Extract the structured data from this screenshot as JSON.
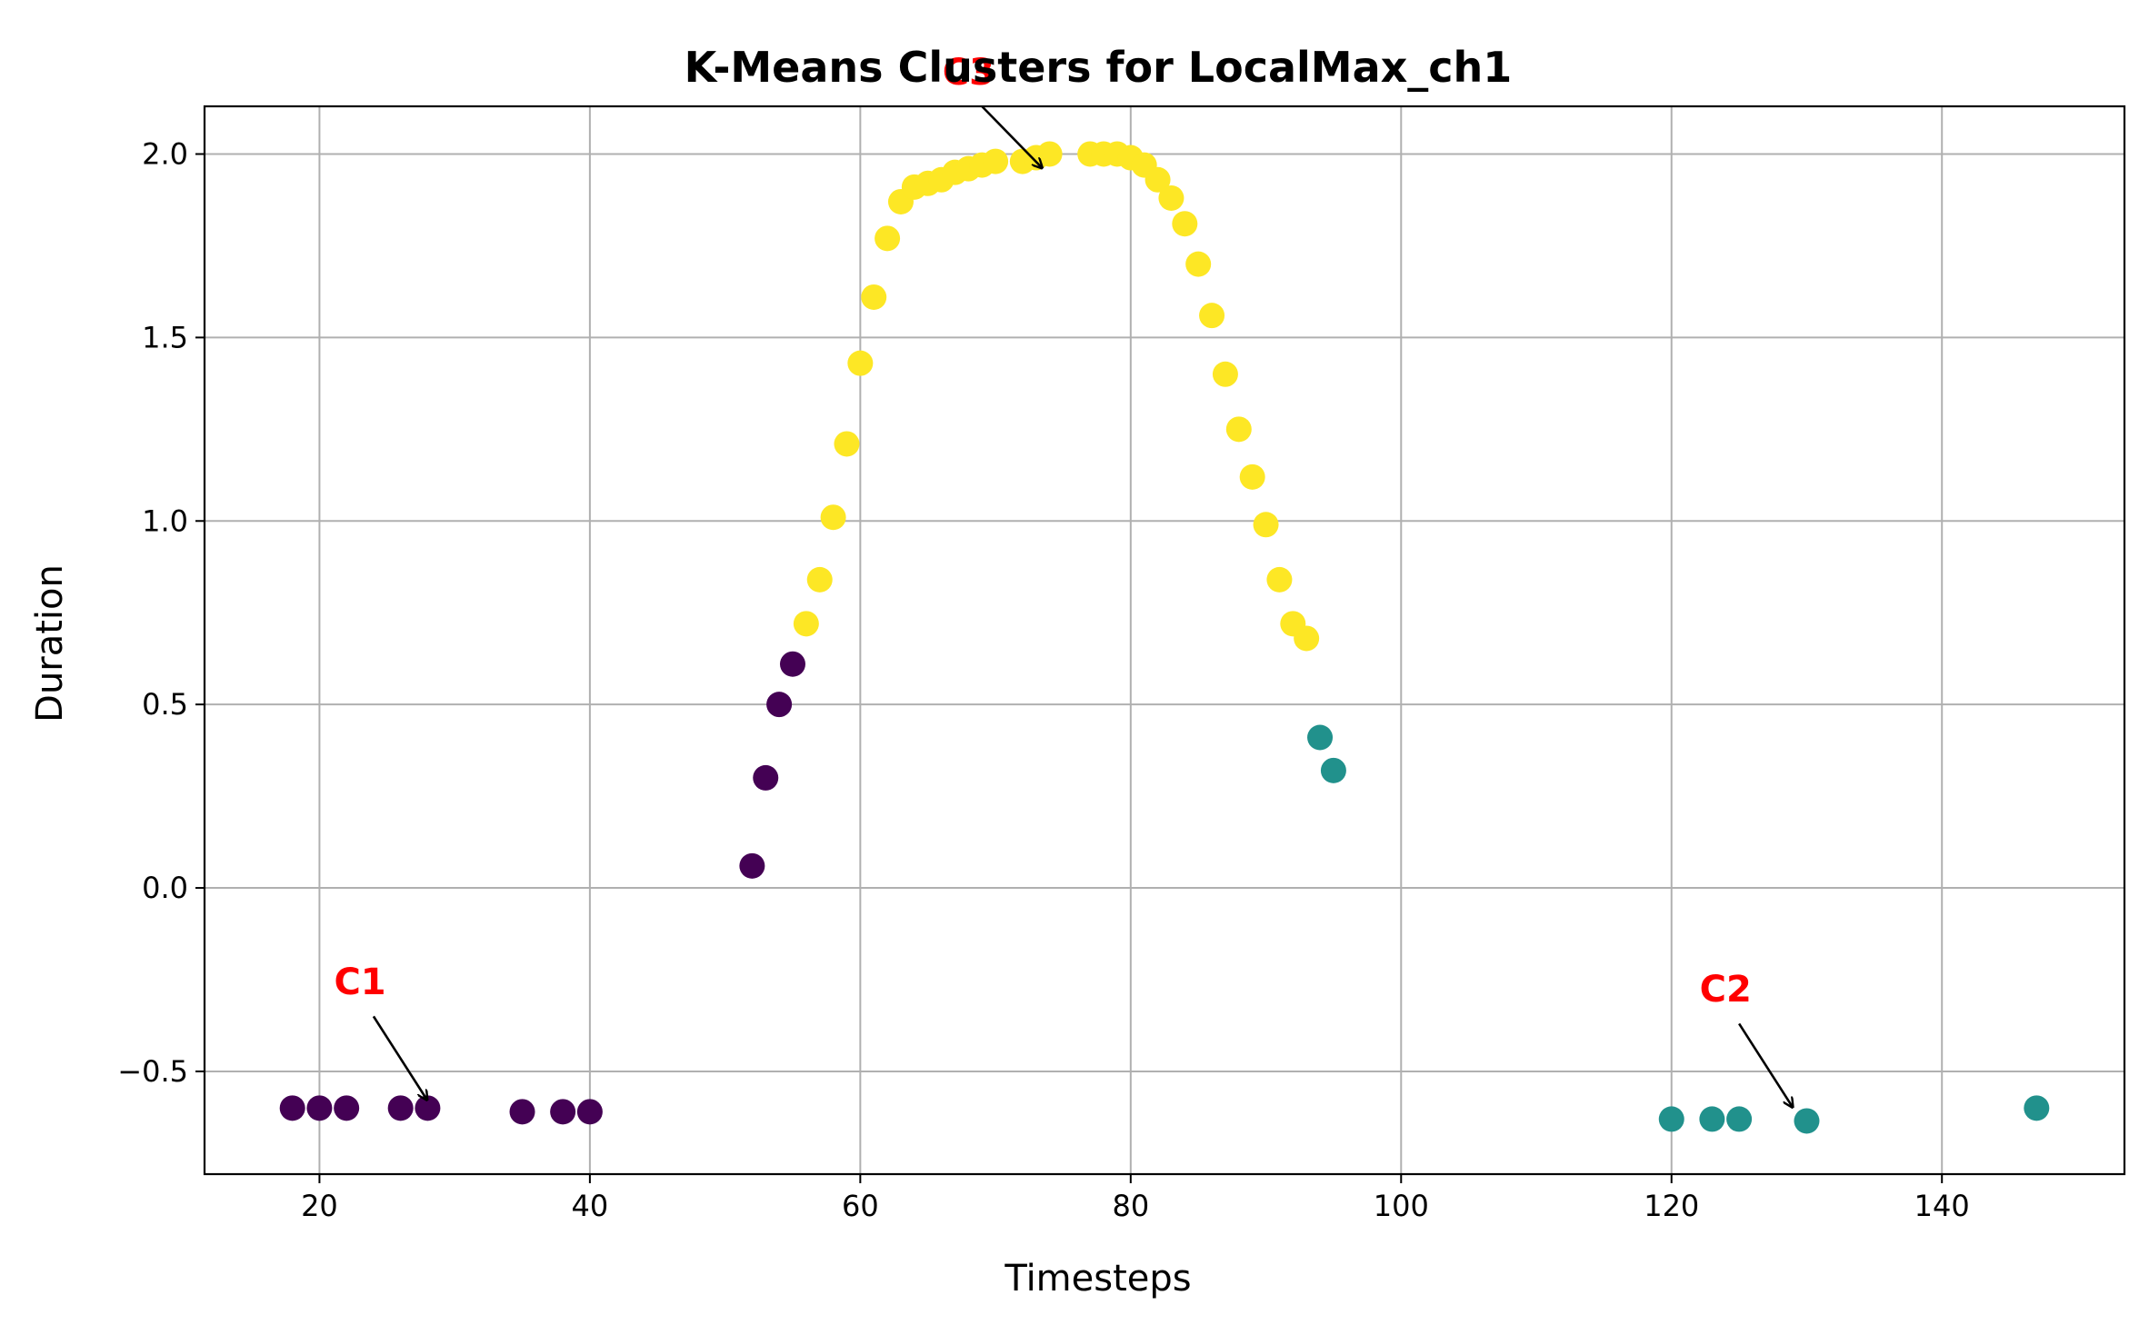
{
  "chart_data": {
    "type": "scatter",
    "title": "K-Means Clusters for LocalMax_ch1",
    "xlabel": "Timesteps",
    "ylabel": "Duration",
    "xlim": [
      11.5,
      153.5
    ],
    "ylim": [
      -0.78,
      2.13
    ],
    "xticks": [
      20,
      40,
      60,
      80,
      100,
      120,
      140
    ],
    "yticks": [
      -0.5,
      0.0,
      0.5,
      1.0,
      1.5,
      2.0
    ],
    "xtick_labels": [
      "20",
      "40",
      "60",
      "80",
      "100",
      "120",
      "140"
    ],
    "ytick_labels": [
      "−0.5",
      "0.0",
      "0.5",
      "1.0",
      "1.5",
      "2.0"
    ],
    "grid": true,
    "legend": "none",
    "colors": {
      "c1": "#440154",
      "c2": "#21918c",
      "c3": "#fde725",
      "annotation": "#ff0000"
    },
    "clusters": [
      {
        "color_key": "c1",
        "points": [
          [
            18,
            -0.6
          ],
          [
            20,
            -0.6
          ],
          [
            22,
            -0.6
          ],
          [
            26,
            -0.6
          ],
          [
            28,
            -0.6
          ],
          [
            35,
            -0.61
          ],
          [
            38,
            -0.61
          ],
          [
            40,
            -0.61
          ],
          [
            52,
            0.06
          ],
          [
            53,
            0.3
          ],
          [
            54,
            0.5
          ],
          [
            55,
            0.61
          ]
        ]
      },
      {
        "color_key": "c2",
        "points": [
          [
            94,
            0.41
          ],
          [
            95,
            0.32
          ],
          [
            120,
            -0.63
          ],
          [
            123,
            -0.63
          ],
          [
            125,
            -0.63
          ],
          [
            130,
            -0.635
          ],
          [
            147,
            -0.6
          ]
        ]
      },
      {
        "color_key": "c3",
        "points": [
          [
            56,
            0.72
          ],
          [
            57,
            0.84
          ],
          [
            58,
            1.01
          ],
          [
            59,
            1.21
          ],
          [
            60,
            1.43
          ],
          [
            61,
            1.61
          ],
          [
            62,
            1.77
          ],
          [
            63,
            1.87
          ],
          [
            64,
            1.91
          ],
          [
            65,
            1.92
          ],
          [
            66,
            1.93
          ],
          [
            67,
            1.95
          ],
          [
            68,
            1.96
          ],
          [
            69,
            1.97
          ],
          [
            70,
            1.98
          ],
          [
            72,
            1.98
          ],
          [
            73,
            1.99
          ],
          [
            74,
            2.0
          ],
          [
            77,
            2.0
          ],
          [
            78,
            2.0
          ],
          [
            79,
            2.0
          ],
          [
            80,
            1.99
          ],
          [
            81,
            1.97
          ],
          [
            82,
            1.93
          ],
          [
            83,
            1.88
          ],
          [
            84,
            1.81
          ],
          [
            85,
            1.7
          ],
          [
            86,
            1.56
          ],
          [
            87,
            1.4
          ],
          [
            88,
            1.25
          ],
          [
            89,
            1.12
          ],
          [
            90,
            0.99
          ],
          [
            91,
            0.84
          ],
          [
            92,
            0.72
          ],
          [
            93,
            0.68
          ]
        ]
      }
    ],
    "annotations": [
      {
        "text": "C1",
        "text_at": [
          23,
          -0.29
        ],
        "arrow_from": [
          24,
          -0.35
        ],
        "arrow_to": [
          28,
          -0.58
        ]
      },
      {
        "text": "C2",
        "text_at": [
          124,
          -0.31
        ],
        "arrow_from": [
          125,
          -0.37
        ],
        "arrow_to": [
          129,
          -0.6
        ]
      },
      {
        "text": "C3",
        "text_at": [
          68,
          2.19
        ],
        "arrow_from": [
          69,
          2.13
        ],
        "arrow_to": [
          73.5,
          1.96
        ]
      }
    ]
  }
}
